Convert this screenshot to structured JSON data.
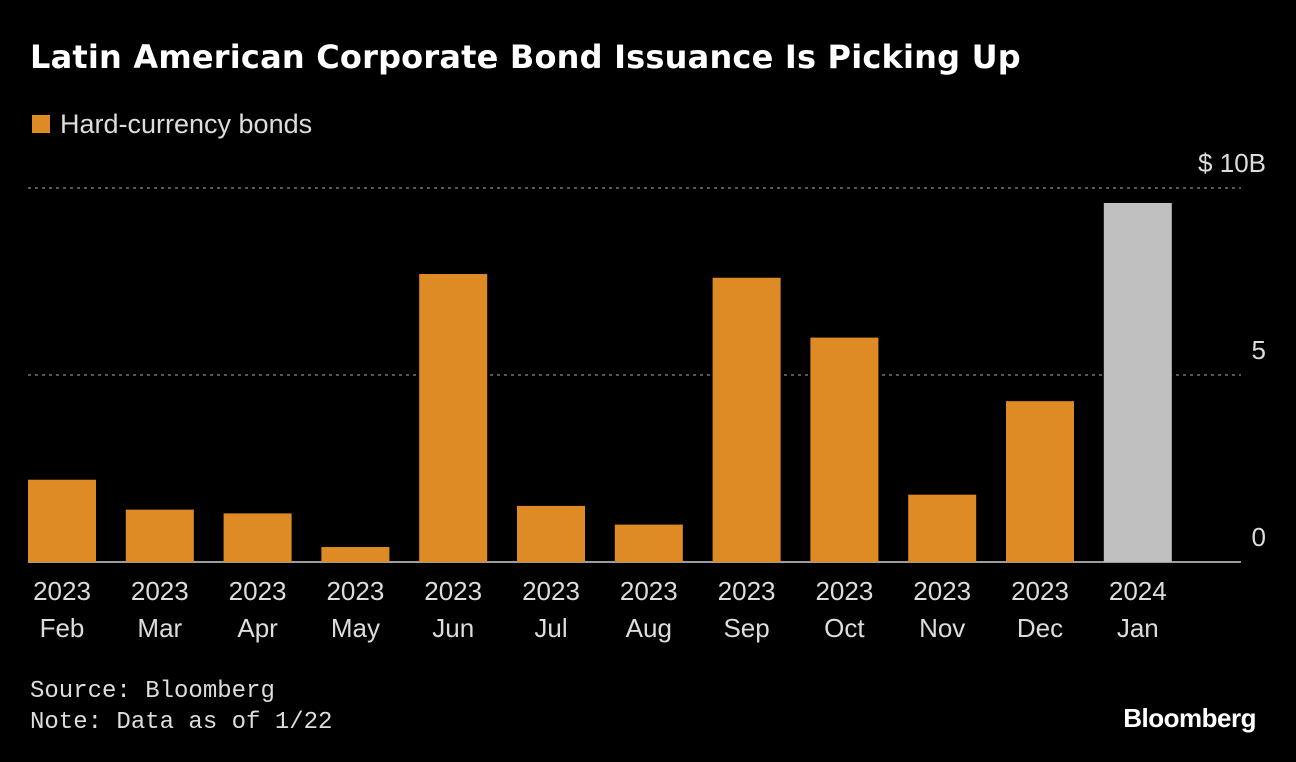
{
  "colors": {
    "background": "#000000",
    "bar": "#df8b25",
    "highlight_bar": "#c0c0c0",
    "grid": "#8a8a8a",
    "text": "#dddddd"
  },
  "chart_data": {
    "type": "bar",
    "title": "Latin American Corporate Bond Issuance Is Picking Up",
    "legend": [
      {
        "name": "Hard-currency bonds",
        "color": "#df8b25"
      }
    ],
    "legend_placement": "top-left",
    "categories": [
      [
        "2023",
        "Feb"
      ],
      [
        "2023",
        "Mar"
      ],
      [
        "2023",
        "Apr"
      ],
      [
        "2023",
        "May"
      ],
      [
        "2023",
        "Jun"
      ],
      [
        "2023",
        "Jul"
      ],
      [
        "2023",
        "Aug"
      ],
      [
        "2023",
        "Sep"
      ],
      [
        "2023",
        "Oct"
      ],
      [
        "2023",
        "Nov"
      ],
      [
        "2023",
        "Dec"
      ],
      [
        "2024",
        "Jan"
      ]
    ],
    "series": [
      {
        "name": "Hard-currency bonds",
        "values": [
          2.2,
          1.4,
          1.3,
          0.4,
          7.7,
          1.5,
          1.0,
          7.6,
          6.0,
          1.8,
          4.3,
          9.6
        ]
      }
    ],
    "highlighted_categories": [
      11
    ],
    "ylim": [
      0,
      10
    ],
    "y_ticks": [
      {
        "value": 10,
        "label": "$ 10B"
      },
      {
        "value": 5,
        "label": "5"
      },
      {
        "value": 0,
        "label": "0"
      }
    ],
    "y_axis_side": "right",
    "grid": "dotted horizontal"
  },
  "footer": {
    "source": "Source: Bloomberg",
    "note": "Note: Data as of 1/22",
    "brand": "Bloomberg"
  }
}
